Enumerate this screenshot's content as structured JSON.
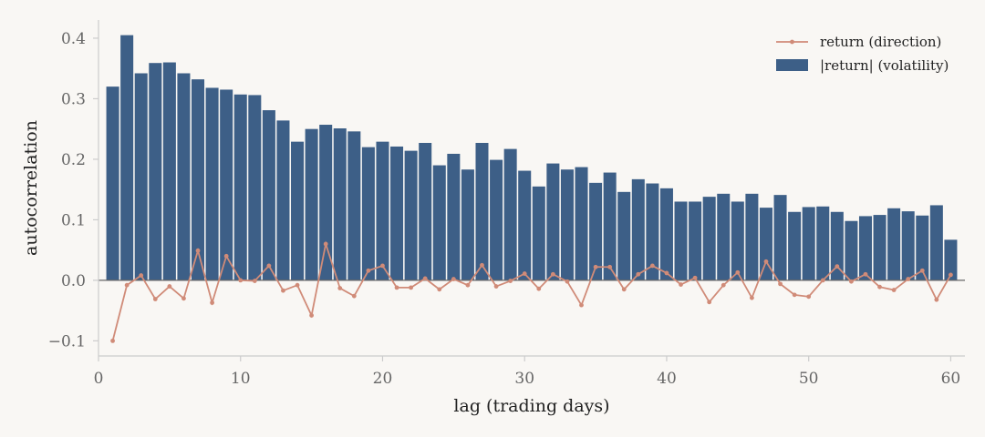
{
  "chart_data": {
    "type": "bar",
    "xlabel": "lag (trading days)",
    "ylabel": "autocorrelation",
    "xlim": [
      0,
      61
    ],
    "ylim": [
      -0.125,
      0.43
    ],
    "xticks": [
      0,
      10,
      20,
      30,
      40,
      50,
      60
    ],
    "yticks": [
      -0.1,
      0.0,
      0.1,
      0.2,
      0.3,
      0.4
    ],
    "ytick_labels": [
      "−0.1",
      "0.0",
      "0.1",
      "0.2",
      "0.3",
      "0.4"
    ],
    "grid": false,
    "legend_position": "top-right",
    "x": [
      1,
      2,
      3,
      4,
      5,
      6,
      7,
      8,
      9,
      10,
      11,
      12,
      13,
      14,
      15,
      16,
      17,
      18,
      19,
      20,
      21,
      22,
      23,
      24,
      25,
      26,
      27,
      28,
      29,
      30,
      31,
      32,
      33,
      34,
      35,
      36,
      37,
      38,
      39,
      40,
      41,
      42,
      43,
      44,
      45,
      46,
      47,
      48,
      49,
      50,
      51,
      52,
      53,
      54,
      55,
      56,
      57,
      58,
      59,
      60
    ],
    "series": [
      {
        "name": "return  (direction)",
        "kind": "line",
        "color": "#d08b78",
        "values": [
          -0.1,
          -0.008,
          0.008,
          -0.031,
          -0.01,
          -0.03,
          0.049,
          -0.037,
          0.04,
          0.0,
          -0.001,
          0.024,
          -0.017,
          -0.008,
          -0.058,
          0.06,
          -0.013,
          -0.026,
          0.016,
          0.024,
          -0.012,
          -0.012,
          0.003,
          -0.015,
          0.002,
          -0.008,
          0.025,
          -0.01,
          -0.001,
          0.011,
          -0.014,
          0.01,
          -0.002,
          -0.041,
          0.022,
          0.022,
          -0.015,
          0.01,
          0.024,
          0.012,
          -0.007,
          0.004,
          -0.036,
          -0.008,
          0.013,
          -0.029,
          0.031,
          -0.006,
          -0.024,
          -0.027,
          0.0,
          0.023,
          -0.002,
          0.01,
          -0.011,
          -0.016,
          0.002,
          0.016,
          -0.032,
          0.009
        ]
      },
      {
        "name": "|return|  (volatility)",
        "kind": "bar",
        "color": "#3d5f87",
        "values": [
          0.32,
          0.405,
          0.342,
          0.359,
          0.36,
          0.342,
          0.332,
          0.318,
          0.315,
          0.307,
          0.306,
          0.281,
          0.264,
          0.229,
          0.25,
          0.257,
          0.251,
          0.246,
          0.22,
          0.229,
          0.221,
          0.214,
          0.227,
          0.19,
          0.209,
          0.183,
          0.227,
          0.199,
          0.217,
          0.181,
          0.155,
          0.193,
          0.183,
          0.187,
          0.161,
          0.178,
          0.146,
          0.167,
          0.16,
          0.152,
          0.13,
          0.13,
          0.138,
          0.143,
          0.13,
          0.143,
          0.12,
          0.141,
          0.113,
          0.121,
          0.122,
          0.113,
          0.098,
          0.106,
          0.108,
          0.119,
          0.114,
          0.107,
          0.124,
          0.067
        ]
      }
    ]
  }
}
